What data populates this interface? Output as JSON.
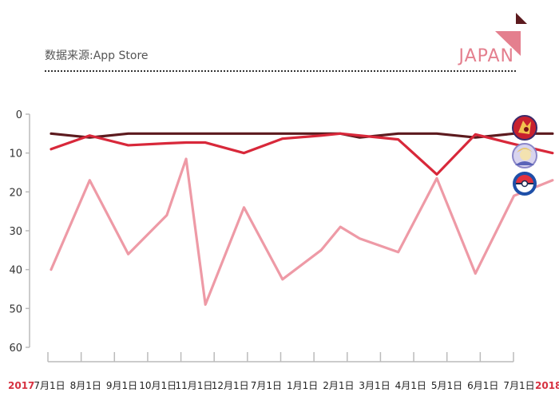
{
  "header": {
    "source": "数据来源:App Store",
    "region": "JAPAN"
  },
  "colors": {
    "series_dark": "#5c1a1e",
    "series_red": "#d8283a",
    "series_pink": "#ee9aa6",
    "accent_pink": "#e47f8e",
    "year_red": "#d63140"
  },
  "chart_data": {
    "type": "line",
    "y_inverted": true,
    "ylim": [
      0,
      60
    ],
    "yticks": [
      "0",
      "10",
      "20",
      "30",
      "40",
      "50",
      "60"
    ],
    "x_start_label": "2017",
    "x_end_label": "2018",
    "categories": [
      "7月1日",
      "8月1日",
      "9月1日",
      "10月1日",
      "11月1日",
      "12月1日",
      "7月1日",
      "1月1日",
      "2月1日",
      "3月1日",
      "4月1日",
      "5月1日",
      "6月1日",
      "7月1日"
    ],
    "x": [
      0,
      1,
      2,
      3,
      3.5,
      4,
      5,
      6,
      7,
      7.5,
      8,
      9,
      10,
      11,
      12,
      13
    ],
    "series": [
      {
        "icon": "fire-emblem-icon",
        "values": [
          5,
          6,
          5,
          5,
          5,
          5,
          5,
          5,
          5,
          5,
          6,
          5,
          5,
          6,
          5,
          5
        ]
      },
      {
        "icon": "fate-grand-order-icon",
        "values": [
          9,
          5.5,
          8,
          7.5,
          7.3,
          7.3,
          10,
          6.3,
          5.5,
          5,
          5.5,
          6.5,
          15.5,
          5.2,
          7.7,
          10
        ]
      },
      {
        "icon": "pokemon-go-icon",
        "values": [
          40,
          17,
          36,
          26,
          11.5,
          49,
          24,
          42.5,
          35,
          29,
          32,
          35.5,
          16.5,
          41,
          21,
          17
        ]
      }
    ],
    "grid": false,
    "legend": "right-icons"
  }
}
